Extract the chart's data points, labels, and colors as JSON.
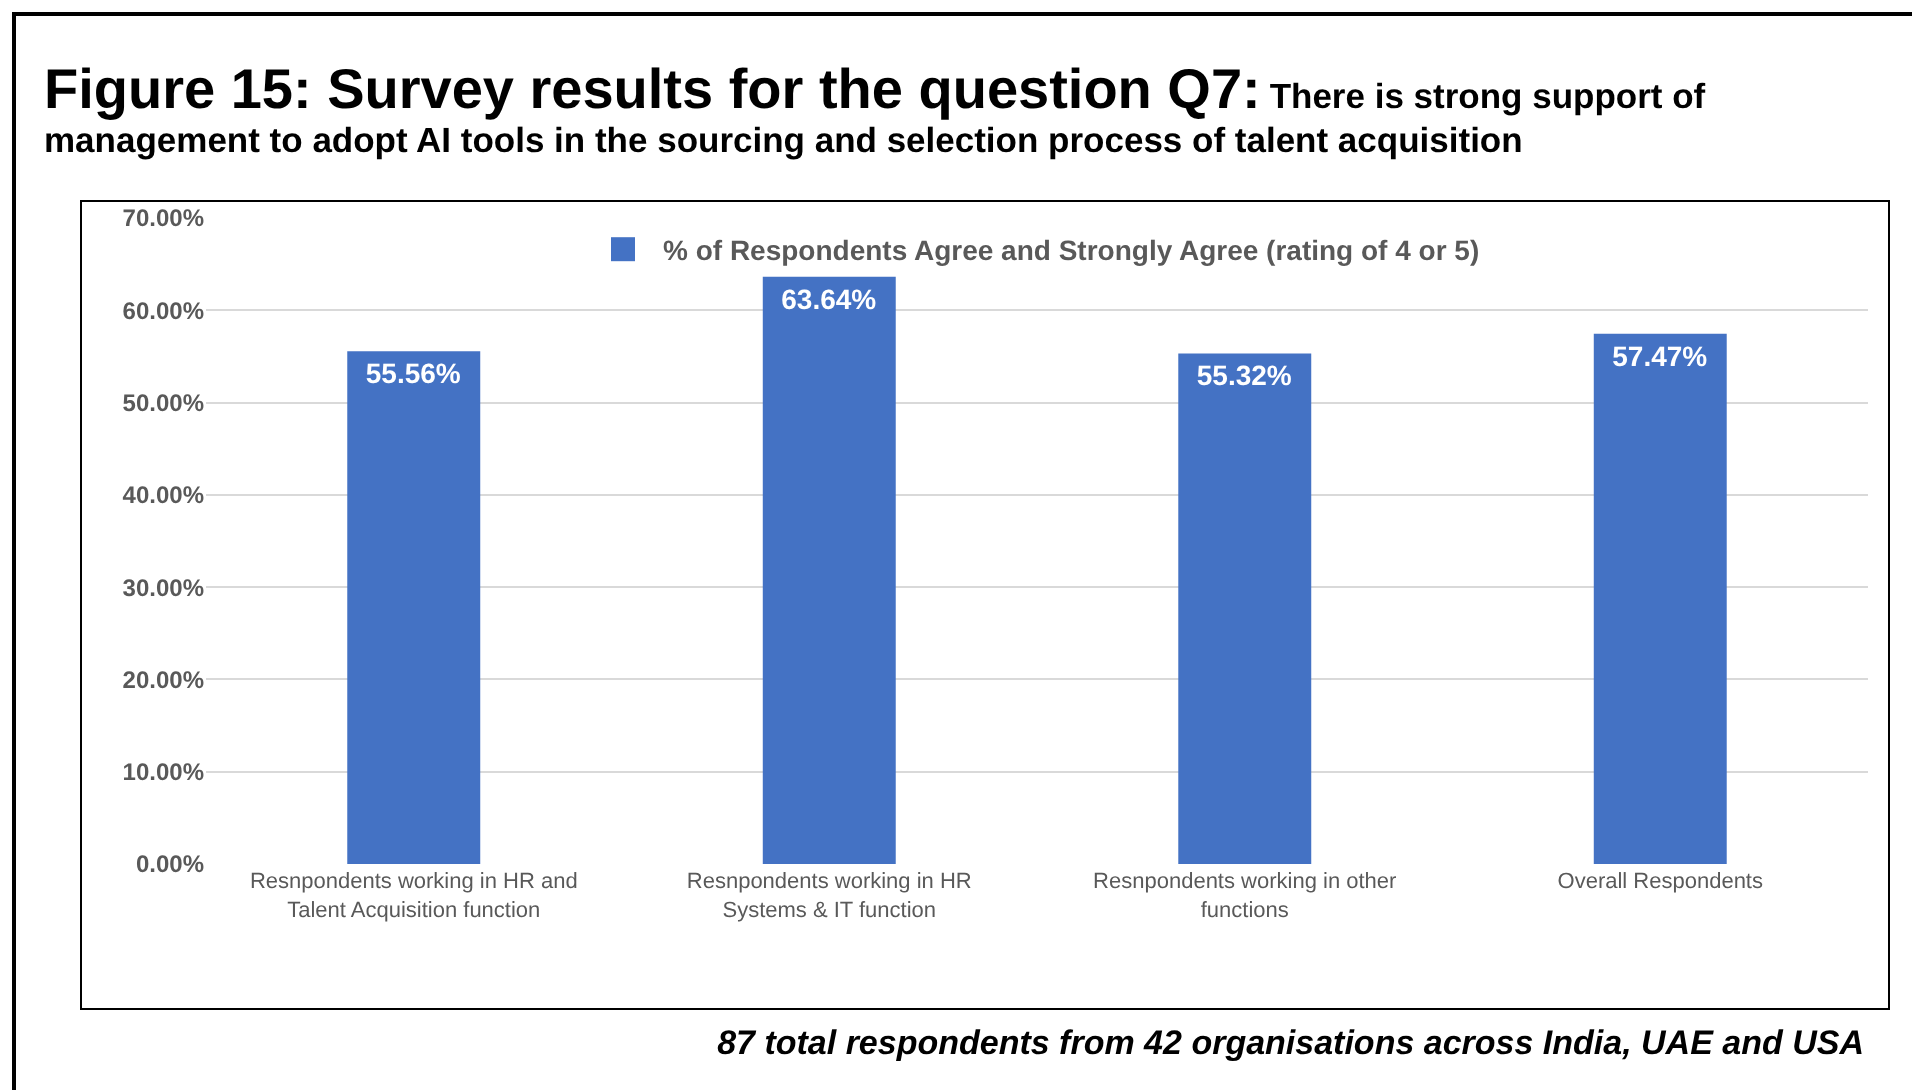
{
  "chart_data": {
    "type": "bar",
    "title": "Figure 15: Survey results for the question Q7:",
    "subtitle": "There is strong support of management to adopt AI tools in the sourcing and selection process of talent acquisition",
    "categories": [
      "Resnpondents working in HR and Talent Acquisition function",
      "Resnpondents working in HR Systems & IT function",
      "Resnpondents working in other functions",
      "Overall Respondents"
    ],
    "series": [
      {
        "name": "% of Respondents Agree and Strongly Agree (rating of 4 or 5)",
        "color": "#4472c4",
        "values": [
          55.56,
          63.64,
          55.32,
          57.47
        ],
        "value_labels": [
          "55.56%",
          "63.64%",
          "55.32%",
          "57.47%"
        ]
      }
    ],
    "ylim": [
      0,
      70
    ],
    "yticks": [
      {
        "value": 0,
        "label": "0.00%"
      },
      {
        "value": 10,
        "label": "10.00%"
      },
      {
        "value": 20,
        "label": "20.00%"
      },
      {
        "value": 30,
        "label": "30.00%"
      },
      {
        "value": 40,
        "label": "40.00%"
      },
      {
        "value": 50,
        "label": "50.00%"
      },
      {
        "value": 60,
        "label": "60.00%"
      },
      {
        "value": 70,
        "label": "70.00%"
      }
    ],
    "grid": "y",
    "legend": "top",
    "annotations": [
      "87 total respondents from 42 organisations across India, UAE and USA"
    ]
  }
}
